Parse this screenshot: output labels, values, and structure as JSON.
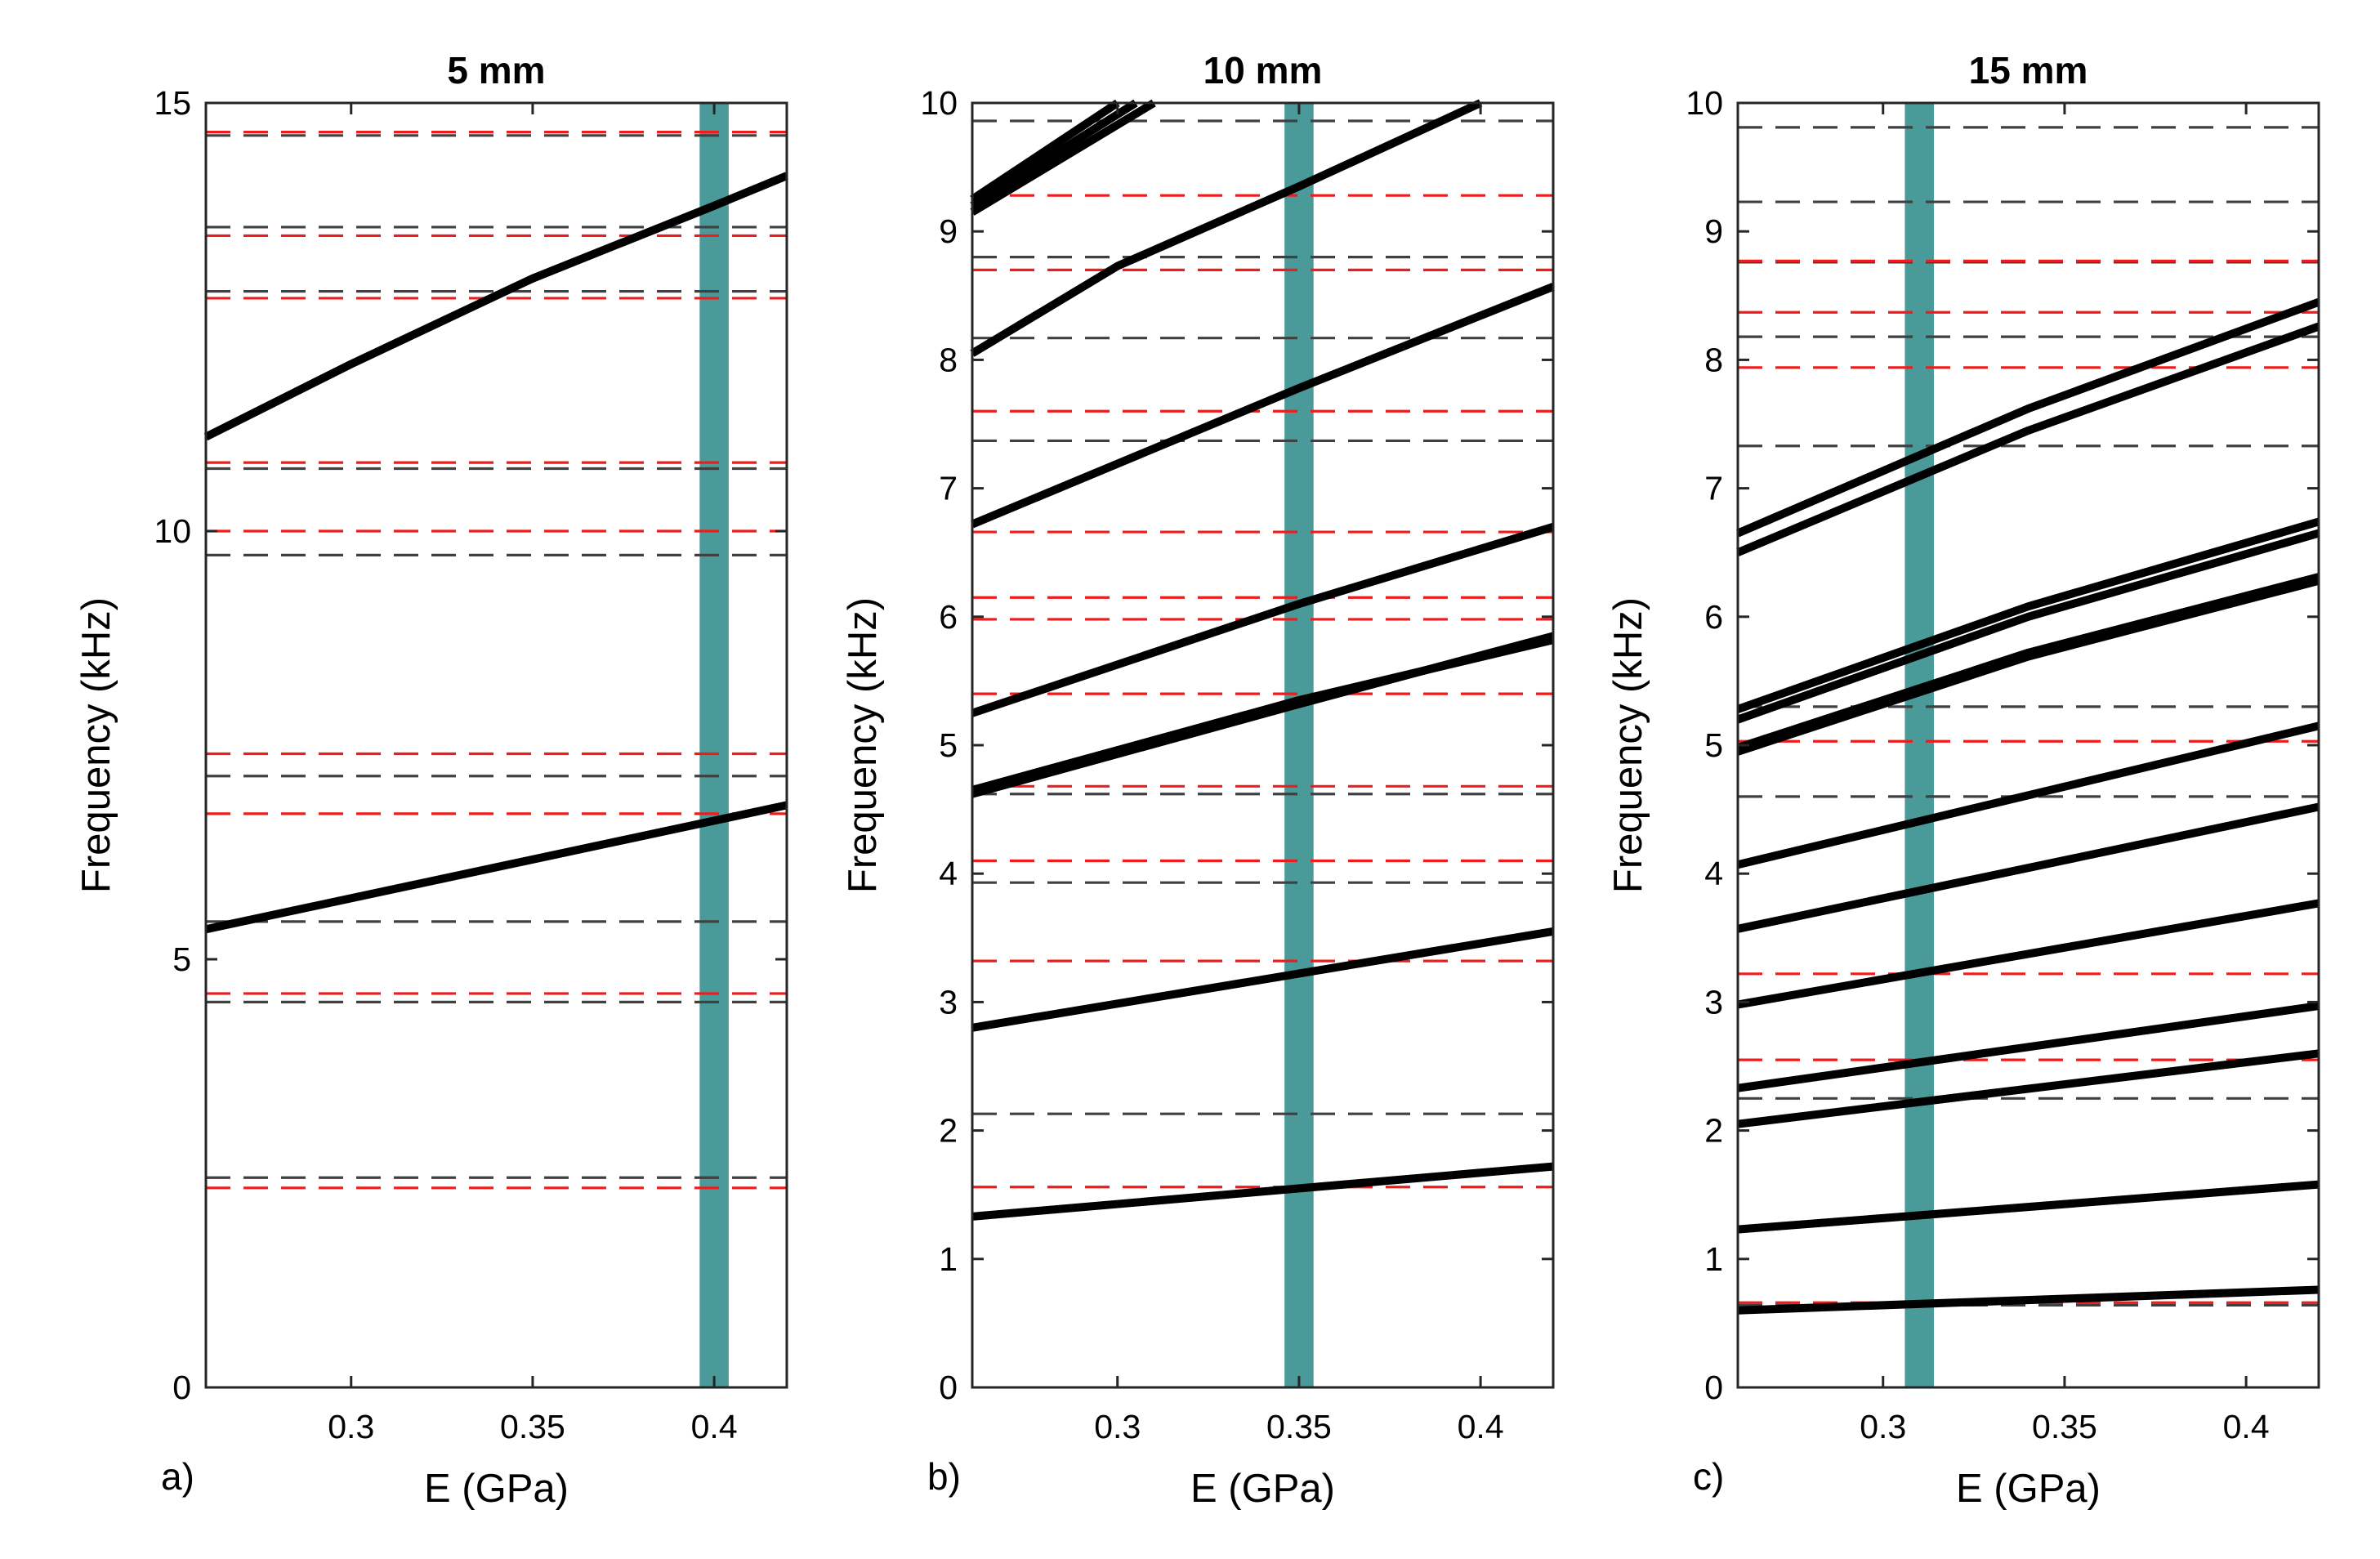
{
  "colors": {
    "band": "#4a9a9a",
    "model": "#000000",
    "measured_red": "#ee1c1c",
    "measured_gray": "#404040"
  },
  "chart_data": [
    {
      "type": "line",
      "panel_label": "a)",
      "title": "5 mm",
      "xlabel": "E (GPa)",
      "ylabel": "Frequency (kHz)",
      "xlim": [
        0.26,
        0.42
      ],
      "ylim": [
        0,
        15
      ],
      "x_ticks": [
        0.3,
        0.35,
        0.4
      ],
      "x_tick_labels": [
        "0.3",
        "0.35",
        "0.4"
      ],
      "y_ticks": [
        0,
        5,
        10,
        15
      ],
      "y_tick_labels": [
        "0",
        "5",
        "10",
        "15"
      ],
      "highlight_E": 0.4,
      "highlight_width": 0.008,
      "model_lines": [
        {
          "x": [
            0.26,
            0.42
          ],
          "y": [
            5.35,
            6.8
          ]
        },
        {
          "x": [
            0.26,
            0.3,
            0.35,
            0.4,
            0.42
          ],
          "y": [
            11.1,
            11.95,
            12.95,
            13.8,
            14.15
          ]
        }
      ],
      "dashed_red": [
        14.66,
        13.45,
        12.72,
        10.8,
        10.0,
        7.4,
        6.7,
        4.6,
        2.33
      ],
      "dashed_gray": [
        14.62,
        13.55,
        12.8,
        10.73,
        9.72,
        7.14,
        5.44,
        4.5,
        2.45
      ]
    },
    {
      "type": "line",
      "panel_label": "b)",
      "title": "10 mm",
      "xlabel": "E (GPa)",
      "ylabel": "Frequency (kHz)",
      "xlim": [
        0.26,
        0.42
      ],
      "ylim": [
        0,
        10
      ],
      "x_ticks": [
        0.3,
        0.35,
        0.4
      ],
      "x_tick_labels": [
        "0.3",
        "0.35",
        "0.4"
      ],
      "y_ticks": [
        0,
        1,
        2,
        3,
        4,
        5,
        6,
        7,
        8,
        9,
        10
      ],
      "y_tick_labels": [
        "0",
        "1",
        "2",
        "3",
        "4",
        "5",
        "6",
        "7",
        "8",
        "9",
        "10"
      ],
      "highlight_E": 0.35,
      "highlight_width": 0.008,
      "model_lines": [
        {
          "x": [
            0.26,
            0.42
          ],
          "y": [
            1.33,
            1.72
          ]
        },
        {
          "x": [
            0.26,
            0.42
          ],
          "y": [
            2.8,
            3.55
          ]
        },
        {
          "x": [
            0.26,
            0.35,
            0.42
          ],
          "y": [
            4.62,
            5.32,
            5.85
          ]
        },
        {
          "x": [
            0.26,
            0.35,
            0.42
          ],
          "y": [
            4.65,
            5.35,
            5.82
          ]
        },
        {
          "x": [
            0.26,
            0.35,
            0.42
          ],
          "y": [
            5.25,
            6.1,
            6.7
          ]
        },
        {
          "x": [
            0.26,
            0.35,
            0.42
          ],
          "y": [
            6.72,
            7.78,
            8.57
          ]
        },
        {
          "x": [
            0.26,
            0.3,
            0.35,
            0.4
          ],
          "y": [
            8.05,
            8.73,
            9.35,
            10.0
          ]
        },
        {
          "x": [
            0.26,
            0.31
          ],
          "y": [
            9.15,
            10.0
          ]
        },
        {
          "x": [
            0.26,
            0.305
          ],
          "y": [
            9.2,
            10.0
          ]
        },
        {
          "x": [
            0.26,
            0.3
          ],
          "y": [
            9.25,
            10.0
          ]
        }
      ],
      "dashed_red": [
        9.28,
        8.7,
        7.6,
        6.66,
        6.15,
        5.98,
        5.4,
        4.68,
        4.1,
        3.32,
        1.56
      ],
      "dashed_gray": [
        9.86,
        8.8,
        8.17,
        7.37,
        4.62,
        3.93,
        2.13
      ]
    },
    {
      "type": "line",
      "panel_label": "c)",
      "title": "15 mm",
      "xlabel": "E (GPa)",
      "ylabel": "Frequency (kHz)",
      "xlim": [
        0.26,
        0.42
      ],
      "ylim": [
        0,
        10
      ],
      "x_ticks": [
        0.3,
        0.35,
        0.4
      ],
      "x_tick_labels": [
        "0.3",
        "0.35",
        "0.4"
      ],
      "y_ticks": [
        0,
        1,
        2,
        3,
        4,
        5,
        6,
        7,
        8,
        9,
        10
      ],
      "y_tick_labels": [
        "0",
        "1",
        "2",
        "3",
        "4",
        "5",
        "6",
        "7",
        "8",
        "9",
        "10"
      ],
      "highlight_E": 0.31,
      "highlight_width": 0.008,
      "model_lines": [
        {
          "x": [
            0.26,
            0.42
          ],
          "y": [
            0.6,
            0.76
          ]
        },
        {
          "x": [
            0.26,
            0.42
          ],
          "y": [
            1.23,
            1.58
          ]
        },
        {
          "x": [
            0.26,
            0.42
          ],
          "y": [
            2.05,
            2.6
          ]
        },
        {
          "x": [
            0.26,
            0.42
          ],
          "y": [
            2.33,
            2.97
          ]
        },
        {
          "x": [
            0.26,
            0.42
          ],
          "y": [
            2.98,
            3.77
          ]
        },
        {
          "x": [
            0.26,
            0.42
          ],
          "y": [
            3.57,
            4.52
          ]
        },
        {
          "x": [
            0.26,
            0.42
          ],
          "y": [
            4.07,
            5.15
          ]
        },
        {
          "x": [
            0.26,
            0.34,
            0.42
          ],
          "y": [
            4.95,
            5.69,
            6.28
          ]
        },
        {
          "x": [
            0.26,
            0.34,
            0.42
          ],
          "y": [
            4.98,
            5.72,
            6.31
          ]
        },
        {
          "x": [
            0.26,
            0.34,
            0.42
          ],
          "y": [
            5.2,
            6.0,
            6.65
          ]
        },
        {
          "x": [
            0.26,
            0.34,
            0.42
          ],
          "y": [
            5.28,
            6.08,
            6.74
          ]
        },
        {
          "x": [
            0.26,
            0.34,
            0.42
          ],
          "y": [
            6.5,
            7.45,
            8.26
          ]
        },
        {
          "x": [
            0.26,
            0.34,
            0.42
          ],
          "y": [
            6.65,
            7.62,
            8.45
          ]
        }
      ],
      "dashed_red": [
        8.77,
        8.37,
        7.94,
        5.03,
        3.22,
        2.55,
        0.66
      ],
      "dashed_gray": [
        9.81,
        9.23,
        8.76,
        8.18,
        7.33,
        5.3,
        4.6,
        2.25,
        0.64
      ]
    }
  ]
}
